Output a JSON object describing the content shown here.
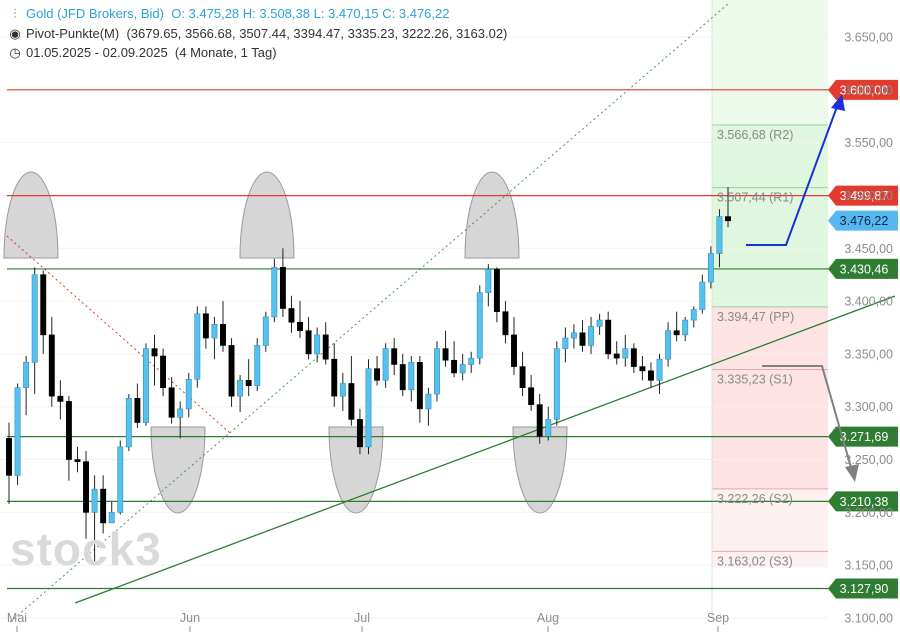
{
  "header": {
    "instrument": "Gold (JFD Brokers, Bid)",
    "ohlc": "O: 3.475,28  H: 3.508,38  L: 3.470,15  C: 3.476,22",
    "pivot_title": "Pivot-Punkte(M)",
    "pivot_values": "(3679.65, 3566.68, 3507.44, 3394.47, 3335.23, 3222.26, 3163.02)",
    "range": "01.05.2025 - 02.09.2025",
    "range_note": "(4 Monate, 1 Tag)"
  },
  "watermark": "stock3",
  "colors": {
    "candle_up": "#57c1ee",
    "candle_down": "#000000",
    "resistance": "#e23b2e",
    "support": "#2e7d32",
    "current": "#56b8ee",
    "arrow_up": "#1a2fd6",
    "arrow_down": "#808080"
  },
  "chart_data": {
    "type": "candlestick",
    "ylim": [
      3090,
      3700
    ],
    "y_ticks": [
      "3.650,00",
      "3.600,00",
      "3.550,00",
      "3.500,00",
      "3.450,00",
      "3.400,00",
      "3.350,00",
      "3.300,00",
      "3.250,00",
      "3.200,00",
      "3.150,00",
      "3.100,00"
    ],
    "x_labels": [
      "Mai",
      "Jun",
      "Jul",
      "Aug",
      "Sep"
    ],
    "candles": [
      [
        3270,
        3285,
        3208,
        3235
      ],
      [
        3235,
        3322,
        3226,
        3318
      ],
      [
        3318,
        3348,
        3292,
        3342
      ],
      [
        3342,
        3432,
        3312,
        3425
      ],
      [
        3425,
        3429,
        3350,
        3368
      ],
      [
        3368,
        3385,
        3300,
        3310
      ],
      [
        3310,
        3325,
        3288,
        3305
      ],
      [
        3305,
        3310,
        3230,
        3250
      ],
      [
        3250,
        3262,
        3238,
        3248
      ],
      [
        3248,
        3258,
        3175,
        3200
      ],
      [
        3200,
        3235,
        3150,
        3222
      ],
      [
        3222,
        3235,
        3180,
        3190
      ],
      [
        3190,
        3210,
        3195,
        3200
      ],
      [
        3200,
        3268,
        3198,
        3262
      ],
      [
        3262,
        3312,
        3258,
        3308
      ],
      [
        3308,
        3322,
        3280,
        3285
      ],
      [
        3285,
        3360,
        3282,
        3355
      ],
      [
        3355,
        3368,
        3320,
        3348
      ],
      [
        3348,
        3355,
        3310,
        3318
      ],
      [
        3318,
        3328,
        3284,
        3290
      ],
      [
        3290,
        3305,
        3270,
        3298
      ],
      [
        3298,
        3332,
        3290,
        3326
      ],
      [
        3326,
        3395,
        3318,
        3388
      ],
      [
        3388,
        3395,
        3355,
        3365
      ],
      [
        3365,
        3385,
        3345,
        3378
      ],
      [
        3378,
        3400,
        3352,
        3358
      ],
      [
        3358,
        3365,
        3300,
        3310
      ],
      [
        3310,
        3330,
        3295,
        3325
      ],
      [
        3325,
        3345,
        3310,
        3320
      ],
      [
        3320,
        3365,
        3315,
        3358
      ],
      [
        3358,
        3390,
        3352,
        3385
      ],
      [
        3385,
        3440,
        3380,
        3432
      ],
      [
        3432,
        3450,
        3385,
        3393
      ],
      [
        3393,
        3405,
        3370,
        3380
      ],
      [
        3380,
        3400,
        3365,
        3372
      ],
      [
        3372,
        3385,
        3345,
        3350
      ],
      [
        3350,
        3375,
        3342,
        3368
      ],
      [
        3368,
        3380,
        3340,
        3345
      ],
      [
        3345,
        3360,
        3300,
        3310
      ],
      [
        3310,
        3332,
        3296,
        3322
      ],
      [
        3322,
        3348,
        3282,
        3288
      ],
      [
        3288,
        3298,
        3255,
        3262
      ],
      [
        3262,
        3345,
        3255,
        3336
      ],
      [
        3336,
        3348,
        3320,
        3325
      ],
      [
        3325,
        3360,
        3318,
        3355
      ],
      [
        3355,
        3365,
        3330,
        3340
      ],
      [
        3340,
        3350,
        3310,
        3316
      ],
      [
        3316,
        3348,
        3305,
        3342
      ],
      [
        3342,
        3348,
        3285,
        3298
      ],
      [
        3298,
        3318,
        3282,
        3312
      ],
      [
        3312,
        3362,
        3305,
        3355
      ],
      [
        3355,
        3372,
        3338,
        3344
      ],
      [
        3344,
        3362,
        3328,
        3332
      ],
      [
        3332,
        3350,
        3325,
        3340
      ],
      [
        3340,
        3352,
        3332,
        3346
      ],
      [
        3346,
        3415,
        3340,
        3408
      ],
      [
        3408,
        3435,
        3395,
        3430
      ],
      [
        3430,
        3432,
        3380,
        3390
      ],
      [
        3390,
        3400,
        3360,
        3368
      ],
      [
        3368,
        3385,
        3330,
        3338
      ],
      [
        3338,
        3352,
        3310,
        3318
      ],
      [
        3318,
        3330,
        3296,
        3302
      ],
      [
        3302,
        3312,
        3265,
        3272
      ],
      [
        3272,
        3300,
        3268,
        3288
      ],
      [
        3288,
        3362,
        3282,
        3355
      ],
      [
        3355,
        3375,
        3342,
        3365
      ],
      [
        3365,
        3378,
        3355,
        3370
      ],
      [
        3370,
        3382,
        3352,
        3358
      ],
      [
        3358,
        3385,
        3350,
        3376
      ],
      [
        3376,
        3388,
        3368,
        3382
      ],
      [
        3382,
        3390,
        3345,
        3350
      ],
      [
        3350,
        3362,
        3340,
        3346
      ],
      [
        3346,
        3368,
        3338,
        3355
      ],
      [
        3355,
        3360,
        3332,
        3338
      ],
      [
        3338,
        3348,
        3325,
        3334
      ],
      [
        3334,
        3342,
        3318,
        3325
      ],
      [
        3325,
        3350,
        3312,
        3345
      ],
      [
        3345,
        3380,
        3338,
        3372
      ],
      [
        3372,
        3390,
        3362,
        3368
      ],
      [
        3368,
        3385,
        3362,
        3382
      ],
      [
        3382,
        3395,
        3375,
        3392
      ],
      [
        3392,
        3425,
        3388,
        3418
      ],
      [
        3418,
        3452,
        3412,
        3445
      ],
      [
        3445,
        3487,
        3432,
        3480
      ],
      [
        3480,
        3508,
        3470,
        3476
      ]
    ],
    "pivot_levels": [
      {
        "label": "3.566,68 (R2)",
        "value": 3566.68,
        "zone": "green"
      },
      {
        "label": "3.507,44 (R1)",
        "value": 3507.44,
        "zone": "green"
      },
      {
        "label": "3.394,47 (PP)",
        "value": 3394.47,
        "zone": "green"
      },
      {
        "label": "3.335,23 (S1)",
        "value": 3335.23,
        "zone": "red"
      },
      {
        "label": "3.222,26 (S2)",
        "value": 3222.26,
        "zone": "red"
      },
      {
        "label": "3.163,02 (S3)",
        "value": 3163.02,
        "zone": "red"
      }
    ],
    "horizontal_levels": [
      {
        "label": "3.600,00",
        "value": 3600.0,
        "type": "resistance"
      },
      {
        "label": "3.499,87",
        "value": 3499.87,
        "type": "resistance"
      },
      {
        "label": "3.476,22",
        "value": 3476.22,
        "type": "current"
      },
      {
        "label": "3.430,46",
        "value": 3430.46,
        "type": "support"
      },
      {
        "label": "3.271,69",
        "value": 3271.69,
        "type": "support"
      },
      {
        "label": "3.210,38",
        "value": 3210.38,
        "type": "support"
      },
      {
        "label": "3.127,90",
        "value": 3127.9,
        "type": "support"
      }
    ],
    "trendlines": [
      {
        "from": [
          0,
          3105
        ],
        "to": [
          1,
          3395
        ],
        "style": "solid",
        "color": "#2e7d32"
      },
      {
        "from": [
          0,
          3095
        ],
        "to": [
          1,
          3680
        ],
        "style": "dotted",
        "color": "#3a8a3a"
      },
      {
        "from": [
          0,
          3478
        ],
        "to": [
          1,
          3274
        ],
        "style": "dotted",
        "color": "#e23b2e"
      }
    ]
  }
}
